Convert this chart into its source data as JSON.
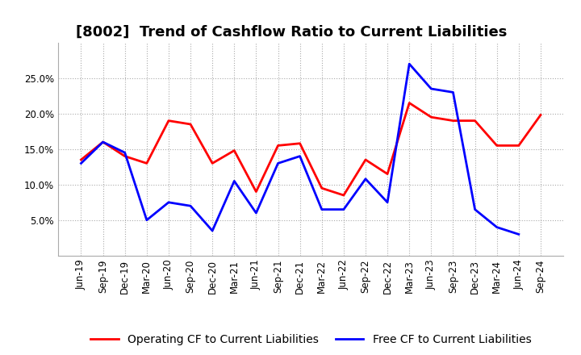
{
  "title": "[8002]  Trend of Cashflow Ratio to Current Liabilities",
  "labels": [
    "Jun-19",
    "Sep-19",
    "Dec-19",
    "Mar-20",
    "Jun-20",
    "Sep-20",
    "Dec-20",
    "Mar-21",
    "Jun-21",
    "Sep-21",
    "Dec-21",
    "Mar-22",
    "Jun-22",
    "Sep-22",
    "Dec-22",
    "Mar-23",
    "Jun-23",
    "Sep-23",
    "Dec-23",
    "Mar-24",
    "Jun-24",
    "Sep-24"
  ],
  "operating_cf": [
    13.5,
    16.0,
    14.0,
    13.0,
    19.0,
    18.5,
    13.0,
    14.8,
    9.0,
    15.5,
    15.8,
    9.5,
    8.5,
    13.5,
    11.5,
    21.5,
    19.5,
    19.0,
    19.0,
    15.5,
    15.5,
    19.8
  ],
  "free_cf": [
    13.0,
    16.0,
    14.5,
    5.0,
    7.5,
    7.0,
    3.5,
    10.5,
    6.0,
    13.0,
    14.0,
    6.5,
    6.5,
    10.8,
    7.5,
    27.0,
    23.5,
    23.0,
    6.5,
    4.0,
    3.0,
    null
  ],
  "ylim": [
    0,
    30
  ],
  "yticks": [
    5.0,
    10.0,
    15.0,
    20.0,
    25.0
  ],
  "operating_color": "#ff0000",
  "free_color": "#0000ff",
  "background_color": "#ffffff",
  "plot_bg_color": "#ffffff",
  "grid_color": "#aaaaaa",
  "legend_labels": [
    "Operating CF to Current Liabilities",
    "Free CF to Current Liabilities"
  ],
  "title_fontsize": 13,
  "axis_fontsize": 8.5,
  "legend_fontsize": 10,
  "linewidth": 2.0
}
